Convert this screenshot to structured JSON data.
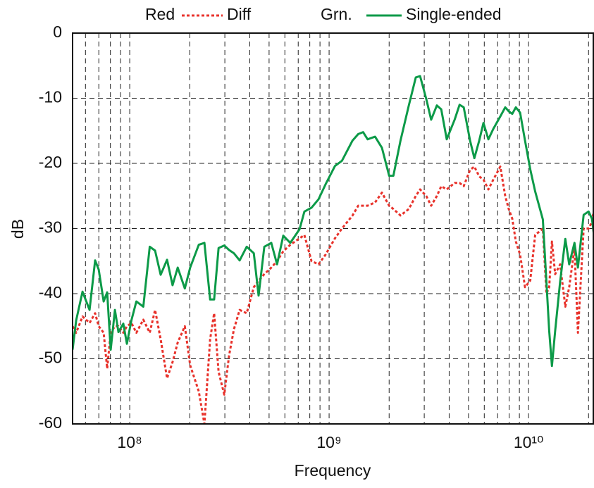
{
  "chart_data": {
    "type": "line",
    "xlabel": "Frequency",
    "ylabel": "dB",
    "xscale": "log",
    "grid": true,
    "xlim": [
      51700000.0,
      21300000000.0
    ],
    "ylim": [
      -60,
      0
    ],
    "yticks": [
      0,
      -10,
      -20,
      -30,
      -40,
      -50,
      -60
    ],
    "xticks": [
      {
        "value": 100000000.0,
        "label": "10⁸"
      },
      {
        "value": 1000000000.0,
        "label": "10⁹"
      },
      {
        "value": 10000000000.0,
        "label": "10¹⁰"
      }
    ],
    "xminorticks": [
      60000000.0,
      70000000.0,
      80000000.0,
      90000000.0,
      200000000.0,
      300000000.0,
      400000000.0,
      500000000.0,
      600000000.0,
      700000000.0,
      800000000.0,
      900000000.0,
      2000000000.0,
      3000000000.0,
      4000000000.0,
      5000000000.0,
      6000000000.0,
      7000000000.0,
      8000000000.0,
      9000000000.0,
      20000000000.0
    ],
    "x": [
      51700000.0,
      53900000.0,
      58000000.0,
      62900000.0,
      67100000.0,
      69900000.0,
      74000000.0,
      77100000.0,
      80300000.0,
      84300000.0,
      87800000.0,
      92900000.0,
      96800000.0,
      102000000.0,
      108000000.0,
      117000000.0,
      126000000.0,
      134000000.0,
      143000000.0,
      154000000.0,
      164000000.0,
      174000000.0,
      189000000.0,
      201000000.0,
      222000000.0,
      237000000.0,
      253000000.0,
      265000000.0,
      279000000.0,
      298000000.0,
      315000000.0,
      333000000.0,
      356000000.0,
      386000000.0,
      419000000.0,
      443000000.0,
      473000000.0,
      513000000.0,
      548000000.0,
      589000000.0,
      639000000.0,
      711000000.0,
      752000000.0,
      816000000.0,
      885000000.0,
      960000000.0,
      1070000000.0,
      1160000000.0,
      1310000000.0,
      1400000000.0,
      1480000000.0,
      1560000000.0,
      1700000000.0,
      1840000000.0,
      2000000000.0,
      2100000000.0,
      2280000000.0,
      2510000000.0,
      2720000000.0,
      2860000000.0,
      3070000000.0,
      3250000000.0,
      3470000000.0,
      3650000000.0,
      3890000000.0,
      4260000000.0,
      4510000000.0,
      4730000000.0,
      5090000000.0,
      5350000000.0,
      5660000000.0,
      5940000000.0,
      6290000000.0,
      6660000000.0,
      7220000000.0,
      7640000000.0,
      7960000000.0,
      8290000000.0,
      8640000000.0,
      9070000000.0,
      9600000000.0,
      10200000000.0,
      10800000000.0,
      11800000000.0,
      12300000000.0,
      12700000000.0,
      13100000000.0,
      13600000000.0,
      14400000000.0,
      15300000000.0,
      16000000000.0,
      17000000000.0,
      17700000000.0,
      18900000000.0,
      20000000000.0,
      20800000000.0,
      21300000000.0
    ],
    "series": [
      {
        "name": "Diff",
        "color_name": "Red",
        "color": "#e8322b",
        "dashed": true,
        "values": [
          -45,
          -46,
          -43.5,
          -44.5,
          -43,
          -45,
          -46,
          -51.5,
          -46,
          -45,
          -45,
          -46,
          -45,
          -44.5,
          -46,
          -44,
          -46,
          -42.5,
          -47,
          -53,
          -50.5,
          -47.5,
          -45,
          -51,
          -55,
          -60,
          -47,
          -43,
          -52,
          -55.5,
          -49.5,
          -45.5,
          -42.5,
          -43,
          -39,
          -38,
          -37,
          -36,
          -35,
          -33.5,
          -32.5,
          -31.5,
          -31,
          -35,
          -35.5,
          -34,
          -31.5,
          -30,
          -28,
          -26.5,
          -26.5,
          -26.5,
          -26,
          -24.5,
          -26.5,
          -27,
          -28,
          -27,
          -25,
          -24,
          -25,
          -26.5,
          -25,
          -23.5,
          -24,
          -23,
          -23,
          -23.5,
          -21,
          -20.5,
          -22,
          -22.5,
          -24,
          -22.5,
          -20.5,
          -25,
          -27,
          -28.5,
          -32,
          -34,
          -39,
          -38,
          -31,
          -30,
          -40,
          -39,
          -32,
          -37,
          -35.5,
          -42,
          -39,
          -33,
          -46,
          -30,
          -30,
          -29,
          -27
        ]
      },
      {
        "name": "Single-ended",
        "color_name": "Grn.",
        "color": "#0c9a48",
        "dashed": false,
        "values": [
          -48.6,
          -44.1,
          -39.7,
          -42.5,
          -34.9,
          -36.3,
          -41.2,
          -39.8,
          -48.6,
          -42.5,
          -45.9,
          -44.6,
          -47.7,
          -44.1,
          -41.2,
          -42.0,
          -32.8,
          -33.4,
          -37.1,
          -34.8,
          -38.7,
          -36.0,
          -39.2,
          -36.0,
          -32.5,
          -32.2,
          -40.9,
          -40.9,
          -33.0,
          -32.6,
          -33.3,
          -33.8,
          -34.9,
          -32.8,
          -33.8,
          -40.3,
          -32.8,
          -32.2,
          -35.5,
          -31.1,
          -32.2,
          -30.1,
          -27.4,
          -26.8,
          -25.5,
          -23.2,
          -20.4,
          -19.6,
          -16.5,
          -15.5,
          -15.2,
          -16.3,
          -15.9,
          -17.6,
          -21.9,
          -21.9,
          -16.5,
          -11.1,
          -6.8,
          -6.6,
          -10.1,
          -13.3,
          -11.1,
          -11.7,
          -16.3,
          -13.3,
          -11.0,
          -11.4,
          -16.5,
          -19.2,
          -16.5,
          -13.8,
          -16.3,
          -14.7,
          -12.8,
          -11.4,
          -12.0,
          -12.4,
          -11.4,
          -12.2,
          -16.5,
          -20.9,
          -24.3,
          -28.6,
          -38.2,
          -45.7,
          -51.1,
          -45.7,
          -38.2,
          -31.6,
          -35.5,
          -32.2,
          -36.0,
          -27.9,
          -27.4,
          -28.5,
          -31.1
        ]
      }
    ]
  }
}
